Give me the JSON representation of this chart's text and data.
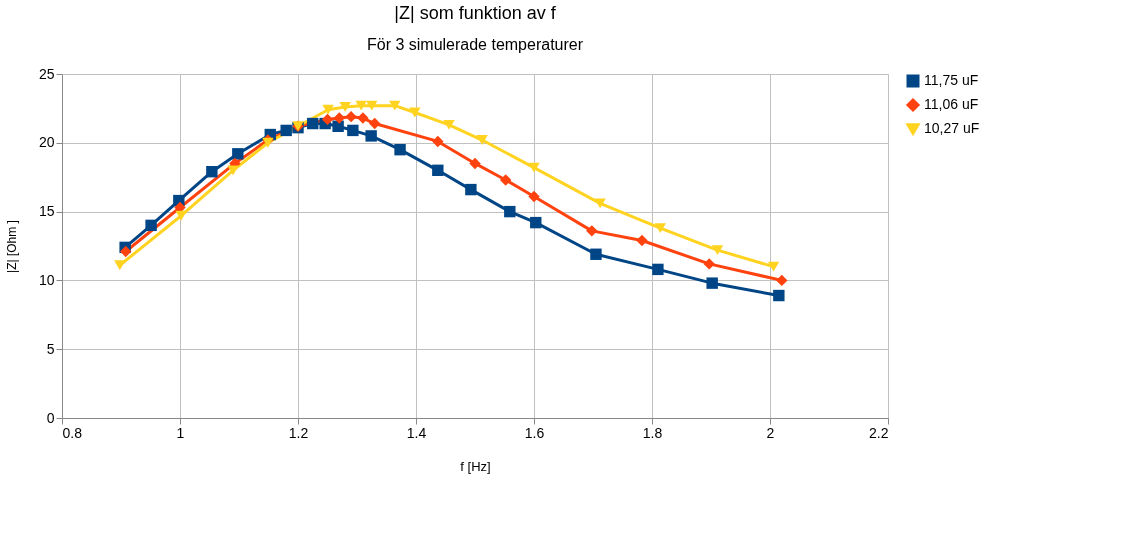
{
  "chart_data": {
    "type": "line",
    "title": "|Z| som funktion av f",
    "subtitle": "För 3 simulerade temperaturer",
    "xlabel": "f [Hz]",
    "ylabel": "|Z| [Ohm ]",
    "xlim": [
      0.8,
      2.2
    ],
    "xticks": [
      0.8,
      1,
      1.2,
      1.4,
      1.6,
      1.8,
      2,
      2.2
    ],
    "ylim": [
      0,
      25
    ],
    "yticks": [
      0,
      5,
      10,
      15,
      20,
      25
    ],
    "grid": true,
    "legend": "right",
    "series": [
      {
        "name": "11,75 uF",
        "color": "#004586",
        "marker": "square",
        "x": [
          0.907,
          0.951,
          0.998,
          1.054,
          1.098,
          1.153,
          1.18,
          1.2,
          1.225,
          1.246,
          1.268,
          1.293,
          1.324,
          1.373,
          1.437,
          1.493,
          1.559,
          1.603,
          1.705,
          1.81,
          1.902,
          2.015
        ],
        "values": [
          12.4,
          14.0,
          15.8,
          17.9,
          19.2,
          20.6,
          20.9,
          21.1,
          21.4,
          21.4,
          21.2,
          20.9,
          20.5,
          19.5,
          18.0,
          16.6,
          15.0,
          14.2,
          11.9,
          10.8,
          9.8,
          8.9
        ]
      },
      {
        "name": "11,06 uF",
        "color": "#ff420e",
        "marker": "diamond",
        "x": [
          0.908,
          1.0,
          1.093,
          1.149,
          1.2,
          1.25,
          1.27,
          1.29,
          1.31,
          1.33,
          1.437,
          1.5,
          1.552,
          1.6,
          1.698,
          1.783,
          1.897,
          2.02
        ],
        "values": [
          12.1,
          15.3,
          18.5,
          20.2,
          21.2,
          21.7,
          21.8,
          21.9,
          21.8,
          21.4,
          20.1,
          18.5,
          17.3,
          16.1,
          13.6,
          12.9,
          11.2,
          10.0
        ]
      },
      {
        "name": "10,27 uF",
        "color": "#ffd320",
        "marker": "triangle",
        "x": [
          0.898,
          1.002,
          1.09,
          1.149,
          1.2,
          1.251,
          1.28,
          1.307,
          1.325,
          1.364,
          1.398,
          1.456,
          1.512,
          1.6,
          1.712,
          1.814,
          1.911,
          2.006
        ],
        "values": [
          11.1,
          14.7,
          18.0,
          20.0,
          21.2,
          22.4,
          22.6,
          22.7,
          22.7,
          22.7,
          22.2,
          21.3,
          20.2,
          18.2,
          15.6,
          13.8,
          12.2,
          11.0
        ]
      }
    ]
  }
}
